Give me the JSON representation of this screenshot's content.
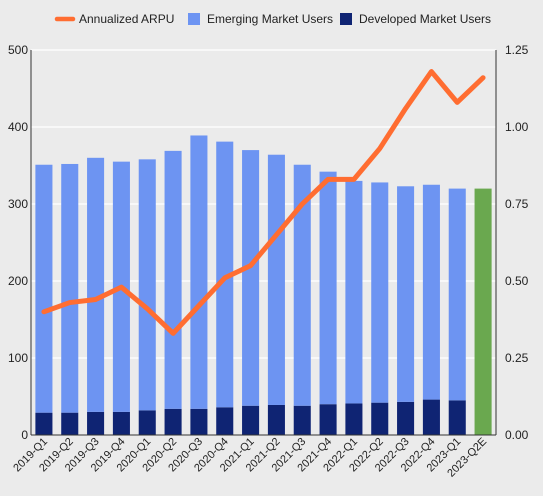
{
  "chart_data": {
    "type": "bar",
    "categories": [
      "2019-Q1",
      "2019-Q2",
      "2019-Q3",
      "2019-Q4",
      "2020-Q1",
      "2020-Q2",
      "2020-Q3",
      "2020-Q4",
      "2021-Q1",
      "2021-Q2",
      "2021-Q3",
      "2021-Q4",
      "2022-Q1",
      "2022-Q2",
      "2022-Q3",
      "2022-Q4",
      "2023-Q1",
      "2023-Q2E"
    ],
    "series": [
      {
        "name": "Developed Market Users",
        "kind": "bar-stacked",
        "axis": "left",
        "color": "#0f2473",
        "values": [
          29,
          29,
          30,
          30,
          32,
          34,
          34,
          36,
          38,
          39,
          38,
          40,
          41,
          42,
          43,
          46,
          45,
          null
        ]
      },
      {
        "name": "Emerging Market Users",
        "kind": "bar-stacked",
        "axis": "left",
        "color": "#6d94f2",
        "values": [
          322,
          323,
          330,
          325,
          326,
          335,
          355,
          345,
          332,
          325,
          313,
          302,
          289,
          286,
          280,
          279,
          275,
          null
        ]
      },
      {
        "name": "2023-Q2E total",
        "kind": "bar-estimate",
        "axis": "left",
        "color": "#6aa84f",
        "values": [
          null,
          null,
          null,
          null,
          null,
          null,
          null,
          null,
          null,
          null,
          null,
          null,
          null,
          null,
          null,
          null,
          null,
          320
        ]
      },
      {
        "name": "Annualized ARPU",
        "kind": "line",
        "axis": "right",
        "color": "#ff6d31",
        "values": [
          0.4,
          0.43,
          0.44,
          0.48,
          0.41,
          0.33,
          0.42,
          0.51,
          0.55,
          0.65,
          0.75,
          0.83,
          0.83,
          0.93,
          1.06,
          1.18,
          1.08,
          1.16
        ]
      }
    ],
    "legend": {
      "position": "top",
      "entries": [
        {
          "label": "Annualized ARPU",
          "color": "#ff6d31",
          "shape": "line"
        },
        {
          "label": "Emerging Market Users",
          "color": "#6d94f2",
          "shape": "square"
        },
        {
          "label": "Developed Market Users",
          "color": "#0f2473",
          "shape": "square"
        }
      ]
    },
    "y_left": {
      "ylim": [
        0,
        500
      ],
      "ticks": [
        "0",
        "100",
        "200",
        "300",
        "400",
        "500"
      ]
    },
    "y_right": {
      "ylim": [
        0,
        1.25
      ],
      "ticks": [
        "0.00",
        "0.25",
        "0.50",
        "0.75",
        "1.00",
        "1.25"
      ]
    },
    "grid": "horizontal",
    "background": "#ebebeb",
    "gridline_color": "#ffffff"
  }
}
